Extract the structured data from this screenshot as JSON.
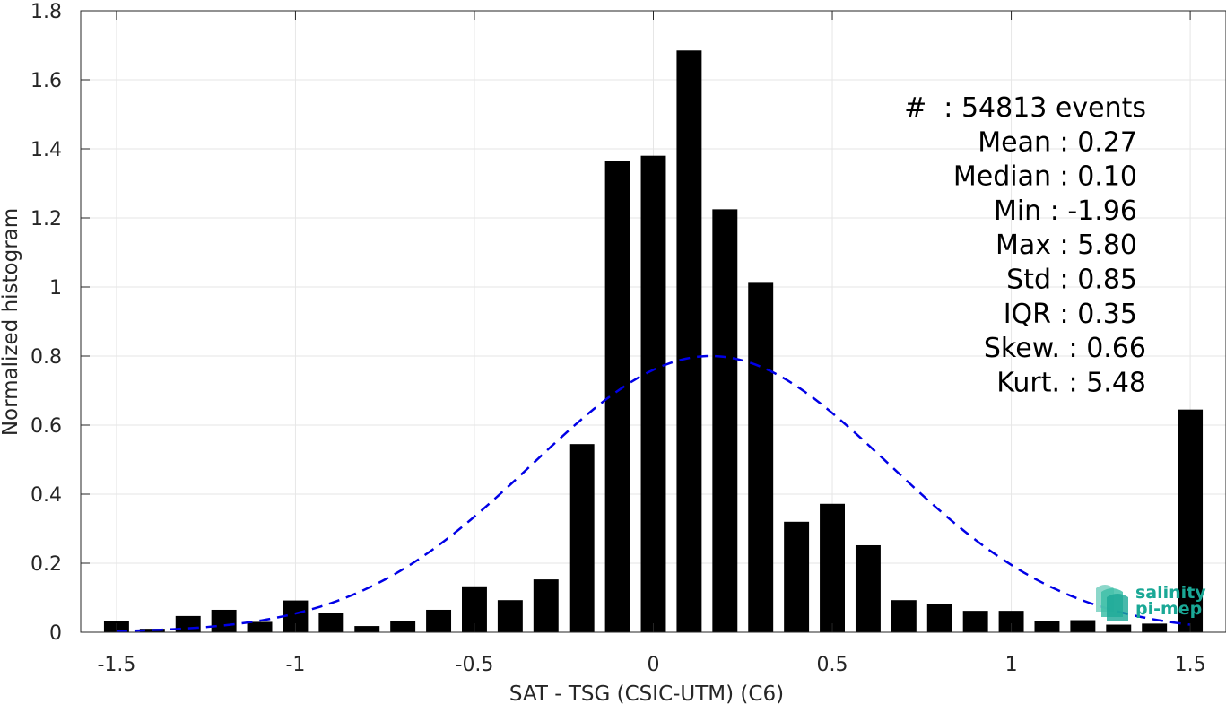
{
  "chart_data": {
    "type": "bar",
    "xlabel": "SAT - TSG (CSIC-UTM) (C6)",
    "ylabel": "Normalized histogram",
    "xlim": [
      -1.6,
      1.6
    ],
    "ylim": [
      0,
      1.8
    ],
    "xticks": [
      -1.5,
      -1,
      -0.5,
      0,
      0.5,
      1,
      1.5
    ],
    "xtick_labels": [
      "-1.5",
      "-1",
      "-0.5",
      "0",
      "0.5",
      "1",
      "1.5"
    ],
    "yticks": [
      0,
      0.2,
      0.4,
      0.6,
      0.8,
      1,
      1.2,
      1.4,
      1.6,
      1.8
    ],
    "ytick_labels": [
      "0",
      "0.2",
      "0.4",
      "0.6",
      "0.8",
      "1",
      "1.2",
      "1.4",
      "1.6",
      "1.8"
    ],
    "grid": true,
    "bar_color": "#000000",
    "bar_width": 0.07,
    "bins": [
      {
        "x": -1.5,
        "value": 0.033
      },
      {
        "x": -1.4,
        "value": 0.01
      },
      {
        "x": -1.3,
        "value": 0.047
      },
      {
        "x": -1.2,
        "value": 0.065
      },
      {
        "x": -1.1,
        "value": 0.03
      },
      {
        "x": -1.0,
        "value": 0.092
      },
      {
        "x": -0.9,
        "value": 0.057
      },
      {
        "x": -0.8,
        "value": 0.018
      },
      {
        "x": -0.7,
        "value": 0.032
      },
      {
        "x": -0.6,
        "value": 0.065
      },
      {
        "x": -0.5,
        "value": 0.133
      },
      {
        "x": -0.4,
        "value": 0.093
      },
      {
        "x": -0.3,
        "value": 0.153
      },
      {
        "x": -0.2,
        "value": 0.545
      },
      {
        "x": -0.1,
        "value": 1.365
      },
      {
        "x": 0.0,
        "value": 1.38
      },
      {
        "x": 0.1,
        "value": 1.685
      },
      {
        "x": 0.2,
        "value": 1.225
      },
      {
        "x": 0.3,
        "value": 1.012
      },
      {
        "x": 0.4,
        "value": 0.32
      },
      {
        "x": 0.5,
        "value": 0.372
      },
      {
        "x": 0.6,
        "value": 0.252
      },
      {
        "x": 0.7,
        "value": 0.093
      },
      {
        "x": 0.8,
        "value": 0.083
      },
      {
        "x": 0.9,
        "value": 0.062
      },
      {
        "x": 1.0,
        "value": 0.062
      },
      {
        "x": 1.1,
        "value": 0.032
      },
      {
        "x": 1.2,
        "value": 0.035
      },
      {
        "x": 1.3,
        "value": 0.022
      },
      {
        "x": 1.4,
        "value": 0.025
      },
      {
        "x": 1.5,
        "value": 0.645
      }
    ],
    "fit_curve": {
      "style": "dashed",
      "color": "#0000e6",
      "x_start": -1.5,
      "x_end": 1.5,
      "peak_x": 0.16,
      "peak_y": 0.8,
      "sigma": 0.5
    },
    "stats_box": {
      "placement": "top-right",
      "lines": [
        {
          "label": "#",
          "sep": ":",
          "value": "54813 events"
        },
        {
          "label": "Mean",
          "sep": ":",
          "value": "0.27"
        },
        {
          "label": "Median",
          "sep": ":",
          "value": "0.10"
        },
        {
          "label": "Min",
          "sep": ":",
          "value": "-1.96"
        },
        {
          "label": "Max",
          "sep": ":",
          "value": "5.80"
        },
        {
          "label": "Std",
          "sep": ":",
          "value": "0.85"
        },
        {
          "label": "IQR",
          "sep": ":",
          "value": "0.35"
        },
        {
          "label": "Skew.",
          "sep": ":",
          "value": "0.66"
        },
        {
          "label": "Kurt.",
          "sep": ":",
          "value": "5.48"
        }
      ]
    }
  },
  "logo": {
    "line1": "salinity",
    "line2": "pi-mep",
    "color": "#1aa896"
  }
}
